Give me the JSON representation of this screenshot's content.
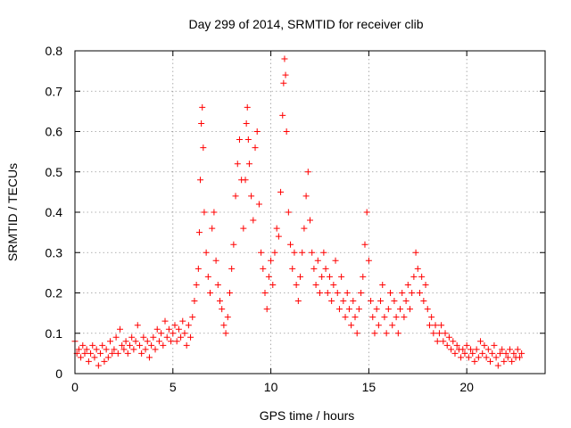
{
  "chart_data": {
    "type": "scatter",
    "title": "Day 299 of 2014, SRMTID for receiver clib",
    "xlabel": "GPS time / hours",
    "ylabel": "SRMTID / TECUs",
    "xlim": [
      0,
      24
    ],
    "ylim": [
      0,
      0.8
    ],
    "xticks": [
      0,
      5,
      10,
      15,
      20
    ],
    "xtick_labels": [
      "0",
      "5",
      "10",
      "15",
      "20"
    ],
    "yticks": [
      0,
      0.1,
      0.2,
      0.3,
      0.4,
      0.5,
      0.6,
      0.7,
      0.8
    ],
    "ytick_labels": [
      "0",
      "0.1",
      "0.2",
      "0.3",
      "0.4",
      "0.5",
      "0.6",
      "0.7",
      "0.8"
    ],
    "grid": true,
    "marker": "+",
    "color": "#ff0000",
    "series": [
      {
        "name": "SRMTID",
        "points": [
          [
            0.0,
            0.08
          ],
          [
            0.1,
            0.05
          ],
          [
            0.2,
            0.06
          ],
          [
            0.3,
            0.04
          ],
          [
            0.4,
            0.07
          ],
          [
            0.5,
            0.05
          ],
          [
            0.6,
            0.06
          ],
          [
            0.7,
            0.03
          ],
          [
            0.8,
            0.05
          ],
          [
            0.9,
            0.07
          ],
          [
            1.0,
            0.04
          ],
          [
            1.1,
            0.06
          ],
          [
            1.2,
            0.02
          ],
          [
            1.3,
            0.05
          ],
          [
            1.4,
            0.07
          ],
          [
            1.5,
            0.03
          ],
          [
            1.6,
            0.06
          ],
          [
            1.7,
            0.04
          ],
          [
            1.8,
            0.08
          ],
          [
            1.9,
            0.05
          ],
          [
            2.0,
            0.06
          ],
          [
            2.1,
            0.09
          ],
          [
            2.2,
            0.05
          ],
          [
            2.3,
            0.11
          ],
          [
            2.4,
            0.07
          ],
          [
            2.5,
            0.06
          ],
          [
            2.6,
            0.08
          ],
          [
            2.7,
            0.05
          ],
          [
            2.8,
            0.07
          ],
          [
            2.9,
            0.09
          ],
          [
            3.0,
            0.06
          ],
          [
            3.1,
            0.08
          ],
          [
            3.2,
            0.12
          ],
          [
            3.3,
            0.07
          ],
          [
            3.4,
            0.05
          ],
          [
            3.5,
            0.09
          ],
          [
            3.6,
            0.06
          ],
          [
            3.7,
            0.08
          ],
          [
            3.8,
            0.04
          ],
          [
            3.9,
            0.07
          ],
          [
            4.0,
            0.09
          ],
          [
            4.1,
            0.06
          ],
          [
            4.2,
            0.11
          ],
          [
            4.3,
            0.08
          ],
          [
            4.4,
            0.1
          ],
          [
            4.5,
            0.07
          ],
          [
            4.6,
            0.13
          ],
          [
            4.7,
            0.09
          ],
          [
            4.8,
            0.11
          ],
          [
            4.9,
            0.08
          ],
          [
            5.0,
            0.1
          ],
          [
            5.1,
            0.12
          ],
          [
            5.2,
            0.08
          ],
          [
            5.3,
            0.11
          ],
          [
            5.4,
            0.09
          ],
          [
            5.5,
            0.13
          ],
          [
            5.6,
            0.1
          ],
          [
            5.7,
            0.07
          ],
          [
            5.8,
            0.12
          ],
          [
            5.9,
            0.09
          ],
          [
            6.0,
            0.14
          ],
          [
            6.1,
            0.18
          ],
          [
            6.2,
            0.22
          ],
          [
            6.3,
            0.26
          ],
          [
            6.35,
            0.35
          ],
          [
            6.4,
            0.48
          ],
          [
            6.45,
            0.62
          ],
          [
            6.5,
            0.66
          ],
          [
            6.55,
            0.56
          ],
          [
            6.6,
            0.4
          ],
          [
            6.7,
            0.3
          ],
          [
            6.8,
            0.24
          ],
          [
            6.9,
            0.2
          ],
          [
            7.0,
            0.36
          ],
          [
            7.1,
            0.4
          ],
          [
            7.2,
            0.28
          ],
          [
            7.3,
            0.22
          ],
          [
            7.4,
            0.18
          ],
          [
            7.5,
            0.16
          ],
          [
            7.6,
            0.12
          ],
          [
            7.7,
            0.1
          ],
          [
            7.8,
            0.14
          ],
          [
            7.9,
            0.2
          ],
          [
            8.0,
            0.26
          ],
          [
            8.1,
            0.32
          ],
          [
            8.2,
            0.44
          ],
          [
            8.3,
            0.52
          ],
          [
            8.4,
            0.58
          ],
          [
            8.5,
            0.48
          ],
          [
            8.6,
            0.36
          ],
          [
            8.7,
            0.48
          ],
          [
            8.75,
            0.62
          ],
          [
            8.8,
            0.66
          ],
          [
            8.85,
            0.58
          ],
          [
            8.9,
            0.52
          ],
          [
            9.0,
            0.44
          ],
          [
            9.1,
            0.38
          ],
          [
            9.2,
            0.56
          ],
          [
            9.3,
            0.6
          ],
          [
            9.4,
            0.42
          ],
          [
            9.5,
            0.3
          ],
          [
            9.6,
            0.26
          ],
          [
            9.7,
            0.2
          ],
          [
            9.8,
            0.16
          ],
          [
            9.9,
            0.24
          ],
          [
            10.0,
            0.28
          ],
          [
            10.1,
            0.22
          ],
          [
            10.2,
            0.3
          ],
          [
            10.3,
            0.36
          ],
          [
            10.4,
            0.34
          ],
          [
            10.5,
            0.45
          ],
          [
            10.6,
            0.64
          ],
          [
            10.65,
            0.72
          ],
          [
            10.7,
            0.78
          ],
          [
            10.75,
            0.74
          ],
          [
            10.8,
            0.6
          ],
          [
            10.9,
            0.4
          ],
          [
            11.0,
            0.32
          ],
          [
            11.1,
            0.26
          ],
          [
            11.2,
            0.3
          ],
          [
            11.3,
            0.22
          ],
          [
            11.4,
            0.18
          ],
          [
            11.5,
            0.24
          ],
          [
            11.6,
            0.3
          ],
          [
            11.7,
            0.36
          ],
          [
            11.8,
            0.44
          ],
          [
            11.9,
            0.5
          ],
          [
            12.0,
            0.38
          ],
          [
            12.1,
            0.3
          ],
          [
            12.2,
            0.26
          ],
          [
            12.3,
            0.22
          ],
          [
            12.4,
            0.28
          ],
          [
            12.5,
            0.2
          ],
          [
            12.6,
            0.24
          ],
          [
            12.7,
            0.3
          ],
          [
            12.8,
            0.26
          ],
          [
            12.9,
            0.2
          ],
          [
            13.0,
            0.24
          ],
          [
            13.1,
            0.18
          ],
          [
            13.2,
            0.22
          ],
          [
            13.3,
            0.28
          ],
          [
            13.4,
            0.2
          ],
          [
            13.5,
            0.16
          ],
          [
            13.6,
            0.24
          ],
          [
            13.7,
            0.18
          ],
          [
            13.8,
            0.14
          ],
          [
            13.9,
            0.2
          ],
          [
            14.0,
            0.16
          ],
          [
            14.1,
            0.12
          ],
          [
            14.2,
            0.18
          ],
          [
            14.3,
            0.14
          ],
          [
            14.4,
            0.1
          ],
          [
            14.5,
            0.16
          ],
          [
            14.6,
            0.2
          ],
          [
            14.7,
            0.24
          ],
          [
            14.8,
            0.32
          ],
          [
            14.9,
            0.4
          ],
          [
            15.0,
            0.28
          ],
          [
            15.1,
            0.18
          ],
          [
            15.2,
            0.14
          ],
          [
            15.3,
            0.1
          ],
          [
            15.4,
            0.16
          ],
          [
            15.5,
            0.12
          ],
          [
            15.6,
            0.18
          ],
          [
            15.7,
            0.22
          ],
          [
            15.8,
            0.14
          ],
          [
            15.9,
            0.1
          ],
          [
            16.0,
            0.16
          ],
          [
            16.1,
            0.2
          ],
          [
            16.2,
            0.12
          ],
          [
            16.3,
            0.18
          ],
          [
            16.4,
            0.14
          ],
          [
            16.5,
            0.1
          ],
          [
            16.6,
            0.16
          ],
          [
            16.7,
            0.2
          ],
          [
            16.8,
            0.14
          ],
          [
            16.9,
            0.18
          ],
          [
            17.0,
            0.22
          ],
          [
            17.1,
            0.16
          ],
          [
            17.2,
            0.2
          ],
          [
            17.3,
            0.24
          ],
          [
            17.4,
            0.3
          ],
          [
            17.5,
            0.26
          ],
          [
            17.6,
            0.2
          ],
          [
            17.7,
            0.24
          ],
          [
            17.8,
            0.18
          ],
          [
            17.9,
            0.22
          ],
          [
            18.0,
            0.16
          ],
          [
            18.1,
            0.12
          ],
          [
            18.2,
            0.14
          ],
          [
            18.3,
            0.1
          ],
          [
            18.4,
            0.12
          ],
          [
            18.5,
            0.08
          ],
          [
            18.6,
            0.1
          ],
          [
            18.7,
            0.12
          ],
          [
            18.8,
            0.08
          ],
          [
            18.9,
            0.1
          ],
          [
            19.0,
            0.07
          ],
          [
            19.1,
            0.09
          ],
          [
            19.2,
            0.06
          ],
          [
            19.3,
            0.08
          ],
          [
            19.4,
            0.05
          ],
          [
            19.5,
            0.07
          ],
          [
            19.6,
            0.06
          ],
          [
            19.7,
            0.04
          ],
          [
            19.8,
            0.06
          ],
          [
            19.9,
            0.05
          ],
          [
            20.0,
            0.07
          ],
          [
            20.1,
            0.04
          ],
          [
            20.2,
            0.06
          ],
          [
            20.3,
            0.05
          ],
          [
            20.4,
            0.03
          ],
          [
            20.5,
            0.06
          ],
          [
            20.6,
            0.04
          ],
          [
            20.7,
            0.08
          ],
          [
            20.8,
            0.05
          ],
          [
            20.9,
            0.07
          ],
          [
            21.0,
            0.04
          ],
          [
            21.1,
            0.06
          ],
          [
            21.2,
            0.03
          ],
          [
            21.3,
            0.05
          ],
          [
            21.4,
            0.07
          ],
          [
            21.5,
            0.04
          ],
          [
            21.6,
            0.02
          ],
          [
            21.7,
            0.05
          ],
          [
            21.8,
            0.06
          ],
          [
            21.9,
            0.03
          ],
          [
            22.0,
            0.05
          ],
          [
            22.1,
            0.04
          ],
          [
            22.2,
            0.06
          ],
          [
            22.3,
            0.03
          ],
          [
            22.4,
            0.05
          ],
          [
            22.5,
            0.04
          ],
          [
            22.6,
            0.06
          ],
          [
            22.7,
            0.04
          ],
          [
            22.8,
            0.05
          ]
        ]
      }
    ]
  }
}
